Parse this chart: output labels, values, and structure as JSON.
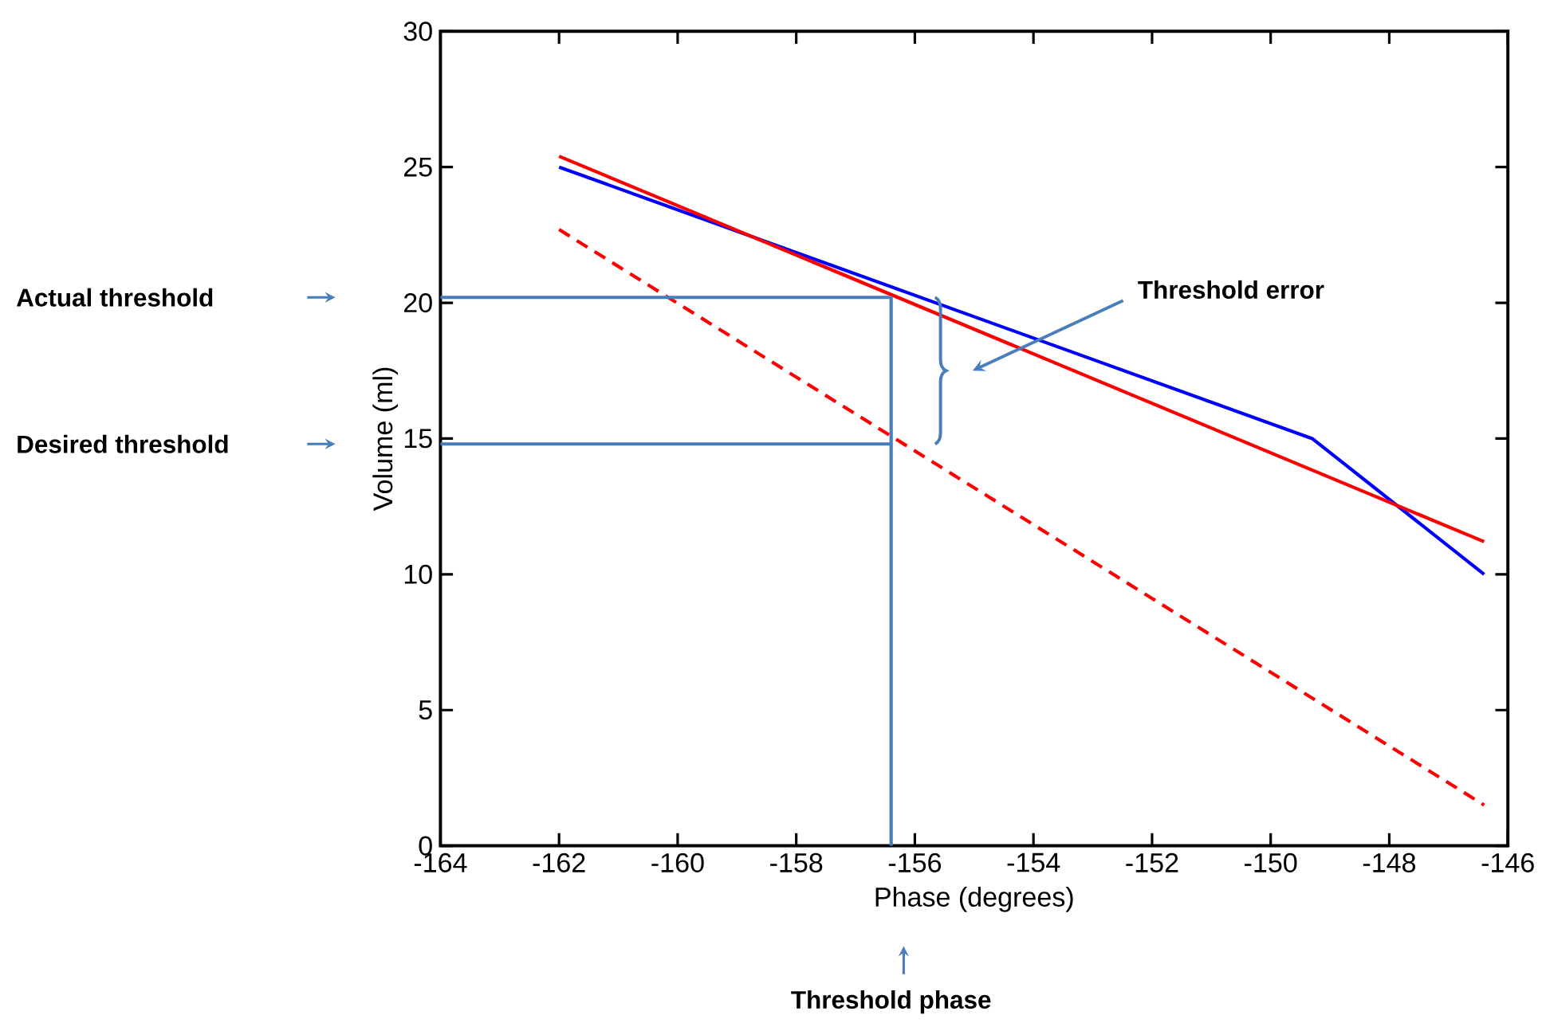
{
  "chart_data": {
    "type": "line",
    "xlabel": "Phase (degrees)",
    "ylabel": "Volume (ml)",
    "xlim": [
      -164,
      -146
    ],
    "ylim": [
      0,
      30
    ],
    "xticks": [
      -164,
      -162,
      -160,
      -158,
      -156,
      -154,
      -152,
      -150,
      -148,
      -146
    ],
    "yticks": [
      0,
      5,
      10,
      15,
      20,
      25,
      30
    ],
    "series": [
      {
        "color": "#0000ff",
        "x": [
          -162,
          -149.3,
          -146.4
        ],
        "values": [
          25,
          15,
          10
        ]
      },
      {
        "color": "#ff0000",
        "x": [
          -162,
          -146.4
        ],
        "values": [
          25.4,
          11.2
        ]
      },
      {
        "color": "#ff0000",
        "line_style": "dashed",
        "x": [
          -162,
          -146.4
        ],
        "values": [
          22.7,
          1.5
        ]
      },
      {
        "color": "#4a7ebb",
        "x": [
          -164,
          -156.4,
          -156.4
        ],
        "values": [
          20.2,
          20.2,
          0
        ]
      },
      {
        "color": "#4a7ebb",
        "x": [
          -164,
          -156.4
        ],
        "values": [
          14.8,
          14.8
        ]
      }
    ],
    "annotations": [
      "Actual threshold",
      "Desired threshold",
      "Threshold phase",
      "Threshold error"
    ]
  }
}
